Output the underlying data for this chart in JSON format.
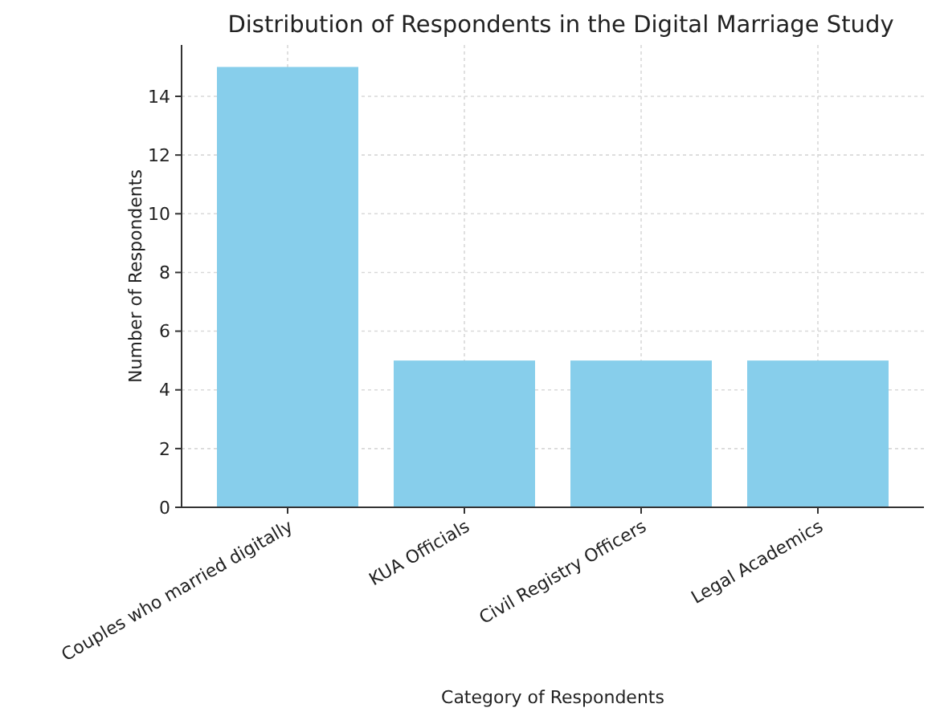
{
  "chart_data": {
    "type": "bar",
    "title": "Distribution of Respondents in the Digital Marriage Study",
    "xlabel": "Category of Respondents",
    "ylabel": "Number of Respondents",
    "categories": [
      "Couples who married digitally",
      "KUA Officials",
      "Civil Registry Officers",
      "Legal Academics"
    ],
    "values": [
      15,
      5,
      5,
      5
    ],
    "color": "#87ceeb",
    "ylim": [
      0,
      15.75
    ],
    "yticks": [
      0,
      2,
      4,
      6,
      8,
      10,
      12,
      14
    ],
    "grid": true
  }
}
